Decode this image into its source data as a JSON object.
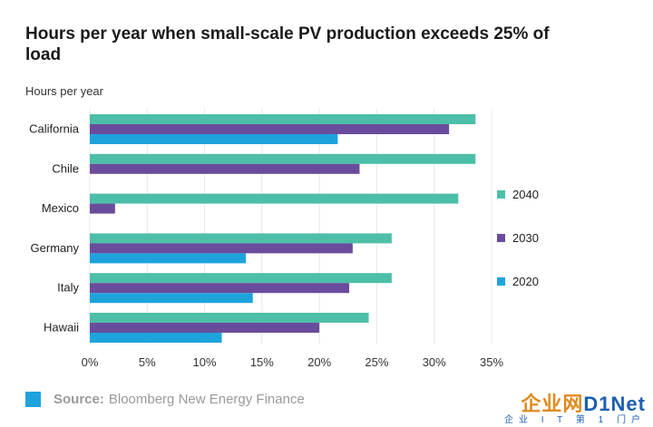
{
  "chart_data": {
    "type": "bar",
    "orientation": "horizontal",
    "title": "Hours per year when small-scale PV production exceeds 25% of load",
    "ylabel": "Hours per year",
    "categories": [
      "California",
      "Chile",
      "Mexico",
      "Germany",
      "Italy",
      "Hawaii"
    ],
    "series": [
      {
        "name": "2040",
        "color": "#4dbfa8",
        "values": [
          33.6,
          33.6,
          32.1,
          26.3,
          26.3,
          24.3
        ]
      },
      {
        "name": "2030",
        "color": "#6a4c9c",
        "values": [
          31.3,
          23.5,
          2.2,
          22.9,
          22.6,
          20.0
        ]
      },
      {
        "name": "2020",
        "color": "#1fa3dd",
        "values": [
          21.6,
          null,
          null,
          13.6,
          14.2,
          11.5
        ]
      }
    ],
    "xlim": [
      0,
      35
    ],
    "xticks": [
      "0%",
      "5%",
      "10%",
      "15%",
      "20%",
      "25%",
      "30%",
      "35%"
    ],
    "legend_position": "right",
    "grid": true
  },
  "source": {
    "prefix": "Source:",
    "text": "Bloomberg New Energy Finance",
    "color": "#1fa3dd"
  },
  "watermark": {
    "brand": "企业网",
    "logo": "D1Net",
    "sub": "企业 I T 第 1 门户"
  }
}
